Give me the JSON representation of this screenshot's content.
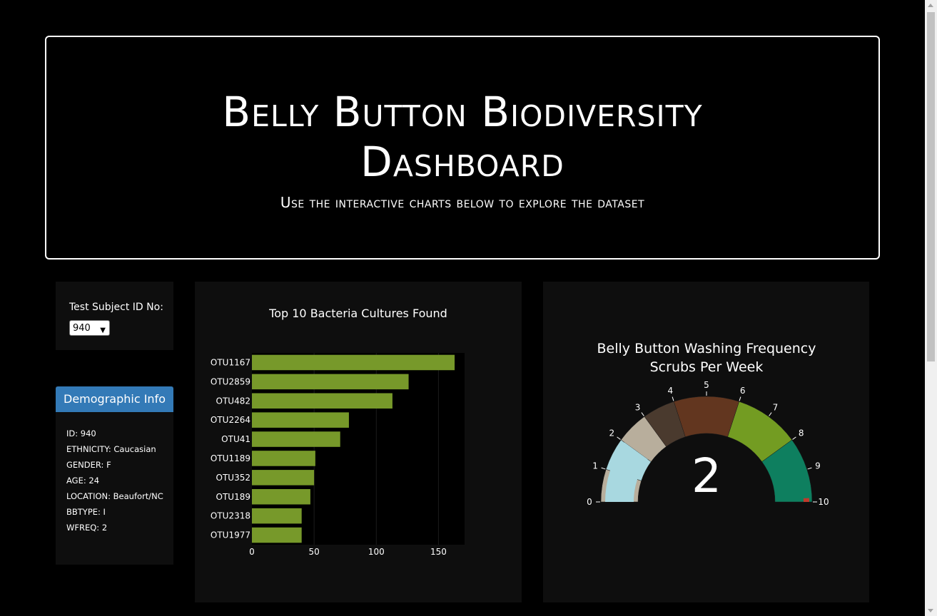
{
  "header": {
    "title_line1": "Belly Button Biodiversity",
    "title_line2": "Dashboard",
    "subtitle": "Use the interactive charts below to explore the dataset"
  },
  "selector": {
    "label": "Test Subject ID No:",
    "selected": "940"
  },
  "demographics": {
    "heading": "Demographic Info",
    "rows": [
      "ID: 940",
      "ETHNICITY: Caucasian",
      "GENDER: F",
      "AGE: 24",
      "LOCATION: Beaufort/NC",
      "BBTYPE: I",
      "WFREQ: 2"
    ]
  },
  "colors": {
    "bar": "#77992a",
    "demo_header": "#337ab7",
    "panel": "#0e0e0e"
  },
  "chart_data": [
    {
      "type": "bar",
      "orientation": "horizontal",
      "title": "Top 10 Bacteria Cultures Found",
      "categories": [
        "OTU1167",
        "OTU2859",
        "OTU482",
        "OTU2264",
        "OTU41",
        "OTU1189",
        "OTU352",
        "OTU189",
        "OTU2318",
        "OTU1977"
      ],
      "values": [
        163,
        126,
        113,
        78,
        71,
        51,
        50,
        47,
        40,
        40
      ],
      "xlim": [
        0,
        171
      ],
      "xticks": [
        0,
        50,
        100,
        150
      ],
      "grid": true
    },
    {
      "type": "gauge",
      "title_line1": "Belly Button Washing Frequency",
      "title_line2": "Scrubs Per Week",
      "value": 2,
      "range": [
        0,
        10
      ],
      "ticks": [
        0,
        1,
        2,
        3,
        4,
        5,
        6,
        7,
        8,
        9,
        10
      ],
      "steps": [
        {
          "range": [
            0,
            1
          ],
          "color": "#b8ae9c"
        },
        {
          "range": [
            1,
            2
          ],
          "color": "#a8d8e0"
        },
        {
          "range": [
            2,
            3
          ],
          "color": "#b8ae9c"
        },
        {
          "range": [
            3,
            4
          ],
          "color": "#4a3a2e"
        },
        {
          "range": [
            4,
            6
          ],
          "color": "#62361f"
        },
        {
          "range": [
            6,
            8
          ],
          "color": "#739c22"
        },
        {
          "range": [
            8,
            10
          ],
          "color": "#0e7f5f"
        }
      ],
      "threshold": {
        "value": 10,
        "color": "#c0392b"
      }
    }
  ]
}
